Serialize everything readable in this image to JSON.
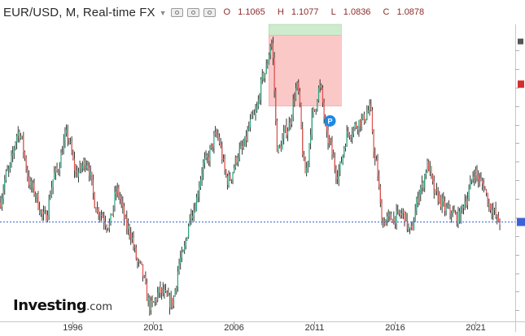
{
  "header": {
    "title": "EUR/USD, M, Real-time FX",
    "open_label": "O",
    "open": "1.1065",
    "high_label": "H",
    "high": "1.1077",
    "low_label": "L",
    "low": "1.0836",
    "close_label": "C",
    "close": "1.0878"
  },
  "logo": {
    "main": "Investing",
    "sub": ".com"
  },
  "colors": {
    "up": "#2aa57c",
    "down": "#e0514b",
    "wick": "#222222",
    "dashed_line": "#3b63d6",
    "buy_zone": "#cdeccd",
    "sell_zone": "#fbc8c8",
    "marker": "#1e88e5"
  },
  "chart_data": {
    "type": "candlestick",
    "interval": "M",
    "x_tick_labels": [
      "1996",
      "2001",
      "2006",
      "2011",
      "2016",
      "2021"
    ],
    "x_ticks_year": [
      1996,
      2001,
      2006,
      2011,
      2016,
      2021
    ],
    "y_range_approx": [
      0.82,
      1.62
    ],
    "x_range_year": [
      1991.5,
      2023.5
    ],
    "last_price_line": 1.0878,
    "annotations": [
      {
        "type": "zone-upper",
        "x_start_year": 2008.2,
        "x_end_year": 2012.7,
        "y_low": 1.59,
        "y_high": 1.62
      },
      {
        "type": "zone-lower",
        "x_start_year": 2008.2,
        "x_end_year": 2012.7,
        "y_low": 1.4,
        "y_high": 1.59
      },
      {
        "type": "marker",
        "label": "P",
        "year": 2012.0,
        "y": 1.36
      }
    ],
    "anchors": [
      [
        1991.5,
        1.14
      ],
      [
        1992.0,
        1.22
      ],
      [
        1992.7,
        1.33
      ],
      [
        1993.5,
        1.18
      ],
      [
        1994.3,
        1.1
      ],
      [
        1995.0,
        1.22
      ],
      [
        1995.7,
        1.32
      ],
      [
        1996.3,
        1.22
      ],
      [
        1996.9,
        1.25
      ],
      [
        1997.6,
        1.12
      ],
      [
        1998.3,
        1.08
      ],
      [
        1998.8,
        1.17
      ],
      [
        1999.5,
        1.07
      ],
      [
        2000.2,
        0.97
      ],
      [
        2000.9,
        0.86
      ],
      [
        2001.5,
        0.9
      ],
      [
        2002.2,
        0.87
      ],
      [
        2002.8,
        0.99
      ],
      [
        2003.5,
        1.12
      ],
      [
        2004.3,
        1.25
      ],
      [
        2005.0,
        1.32
      ],
      [
        2005.7,
        1.2
      ],
      [
        2006.5,
        1.28
      ],
      [
        2007.3,
        1.37
      ],
      [
        2008.0,
        1.49
      ],
      [
        2008.4,
        1.57
      ],
      [
        2008.8,
        1.28
      ],
      [
        2009.4,
        1.34
      ],
      [
        2010.0,
        1.45
      ],
      [
        2010.5,
        1.22
      ],
      [
        2011.0,
        1.38
      ],
      [
        2011.4,
        1.45
      ],
      [
        2011.9,
        1.31
      ],
      [
        2012.5,
        1.22
      ],
      [
        2013.2,
        1.33
      ],
      [
        2014.0,
        1.36
      ],
      [
        2014.5,
        1.39
      ],
      [
        2014.9,
        1.24
      ],
      [
        2015.3,
        1.09
      ],
      [
        2016.0,
        1.1
      ],
      [
        2016.6,
        1.11
      ],
      [
        2017.0,
        1.06
      ],
      [
        2017.7,
        1.18
      ],
      [
        2018.1,
        1.24
      ],
      [
        2018.6,
        1.16
      ],
      [
        2019.3,
        1.12
      ],
      [
        2020.0,
        1.1
      ],
      [
        2020.5,
        1.15
      ],
      [
        2021.0,
        1.22
      ],
      [
        2021.5,
        1.19
      ],
      [
        2022.0,
        1.13
      ],
      [
        2022.5,
        1.09
      ]
    ]
  }
}
